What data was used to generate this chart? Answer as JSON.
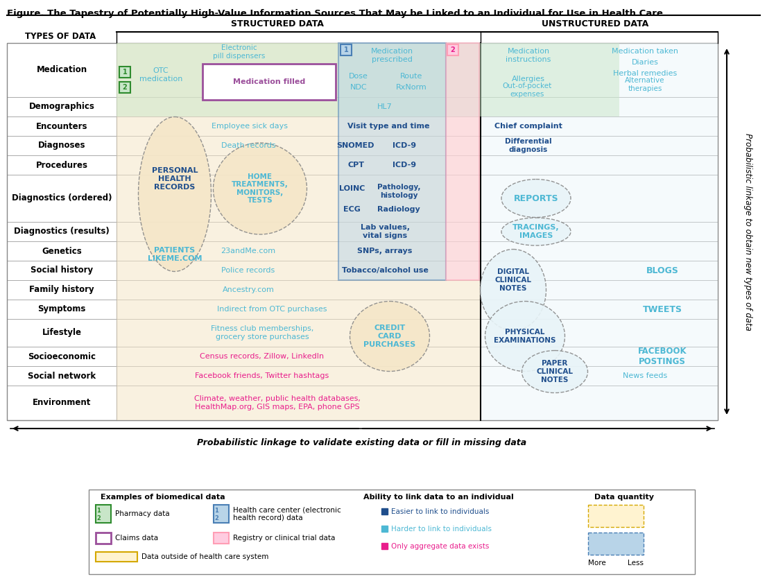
{
  "title": "Figure. The Tapestry of Potentially High-Value Information Sources That May be Linked to an Individual for Use in Health Care",
  "structured_label": "STRUCTURED DATA",
  "unstructured_label": "UNSTRUCTURED DATA",
  "types_label": "TYPES OF DATA",
  "row_labels": [
    "Medication",
    "Demographics",
    "Encounters",
    "Diagnoses",
    "Procedures",
    "Diagnostics (ordered)",
    "Diagnostics (results)",
    "Genetics",
    "Social history",
    "Family history",
    "Symptoms",
    "Lifestyle",
    "Socioeconomic",
    "Social network",
    "Environment"
  ],
  "bottom_label": "Probabilistic linkage to validate existing data or fill in missing data",
  "right_label": "Probabilistic linkage to obtain new types of data",
  "colors": {
    "tan_bg": "#F5E6C8",
    "green_pharmacy": "#C8E6C8",
    "blue_ehr": "#B8D4E8",
    "purple_claims": "#9B4F9B",
    "pink_registry": "#FF9EB5",
    "dark_blue_easy": "#1F4E8C",
    "light_blue_hard": "#4DB8D4",
    "pink_aggregate": "#E91E8C",
    "row_line": "#888888",
    "unstructured_bg": "#E8F4F8"
  }
}
